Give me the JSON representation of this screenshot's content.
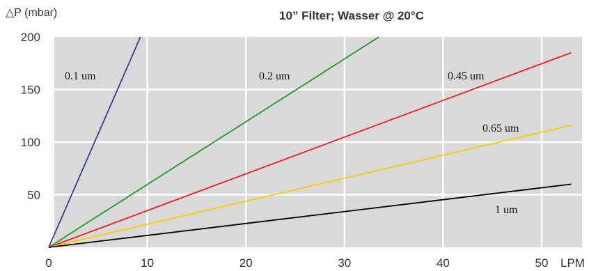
{
  "chart_data": {
    "type": "line",
    "title": "10”  Filter; Wasser @ 20°C",
    "ylabel": "△P (mbar)",
    "xunit": "LPM",
    "xlim": [
      0,
      53
    ],
    "ylim": [
      0,
      200
    ],
    "xticks": [
      "0",
      "10",
      "20",
      "30",
      "40",
      "50"
    ],
    "yticks": [
      "50",
      "100",
      "150",
      "200"
    ],
    "grid": true,
    "background": "#d9d9d9",
    "series": [
      {
        "name": "0.1 um",
        "color": "#3a3a94",
        "x": [
          0,
          9.3
        ],
        "y": [
          0,
          200
        ]
      },
      {
        "name": "0.2 um",
        "color": "#1e9a1e",
        "x": [
          0,
          33.5
        ],
        "y": [
          0,
          200
        ]
      },
      {
        "name": "0.45 um",
        "color": "#ee1c1c",
        "x": [
          0,
          53
        ],
        "y": [
          0,
          185
        ]
      },
      {
        "name": "0.65 um",
        "color": "#ffcc00",
        "x": [
          0,
          53
        ],
        "y": [
          0,
          116
        ]
      },
      {
        "name": "1 um",
        "color": "#000000",
        "x": [
          0,
          53
        ],
        "y": [
          0,
          60
        ]
      }
    ]
  }
}
